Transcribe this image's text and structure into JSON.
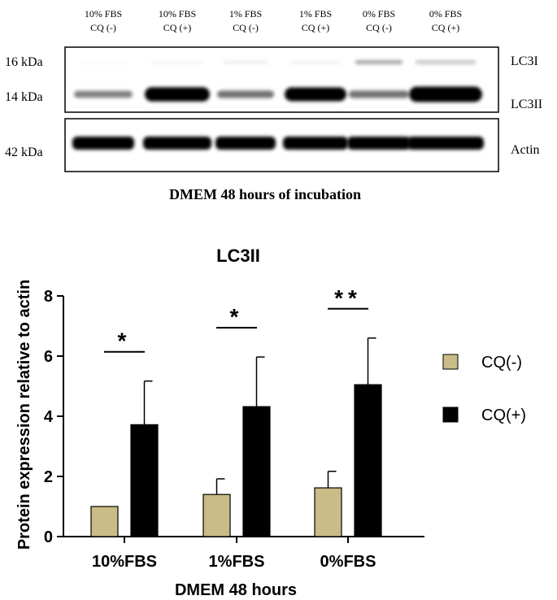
{
  "blot": {
    "lane_labels": [
      [
        "10% FBS",
        "CQ (-)"
      ],
      [
        "10% FBS",
        "CQ (+)"
      ],
      [
        "1% FBS",
        "CQ (-)"
      ],
      [
        "1% FBS",
        "CQ (+)"
      ],
      [
        "0% FBS",
        "CQ (-)"
      ],
      [
        "0% FBS",
        "CQ (+)"
      ]
    ],
    "markers": [
      "16 kDa",
      "14 kDa",
      "42 kDa"
    ],
    "band_labels": [
      "LC3I",
      "LC3II",
      "Actin"
    ],
    "caption": "DMEM 48 hours of incubation",
    "lc3ii_intensity": [
      0.25,
      0.9,
      0.3,
      0.85,
      0.3,
      1.0
    ],
    "lc3i_intensity": [
      0.02,
      0.03,
      0.06,
      0.05,
      0.35,
      0.22
    ]
  },
  "chart_data": {
    "type": "bar",
    "title": "LC3II",
    "xlabel": "DMEM 48 hours",
    "ylabel": "Protein expression relative to actin",
    "categories": [
      "10%FBS",
      "1%FBS",
      "0%FBS"
    ],
    "ylim": [
      0,
      8
    ],
    "yticks": [
      0,
      2,
      4,
      6,
      8
    ],
    "series": [
      {
        "name": "CQ(-)",
        "color": "#c9bc86",
        "values": [
          1.0,
          1.4,
          1.62
        ],
        "errors": [
          0,
          0.52,
          0.55
        ]
      },
      {
        "name": "CQ(+)",
        "color": "#000000",
        "values": [
          3.72,
          4.32,
          5.05
        ],
        "errors": [
          1.45,
          1.65,
          1.55
        ]
      }
    ],
    "significance": [
      "*",
      "*",
      "**"
    ],
    "grid": false,
    "legend_position": "right"
  }
}
